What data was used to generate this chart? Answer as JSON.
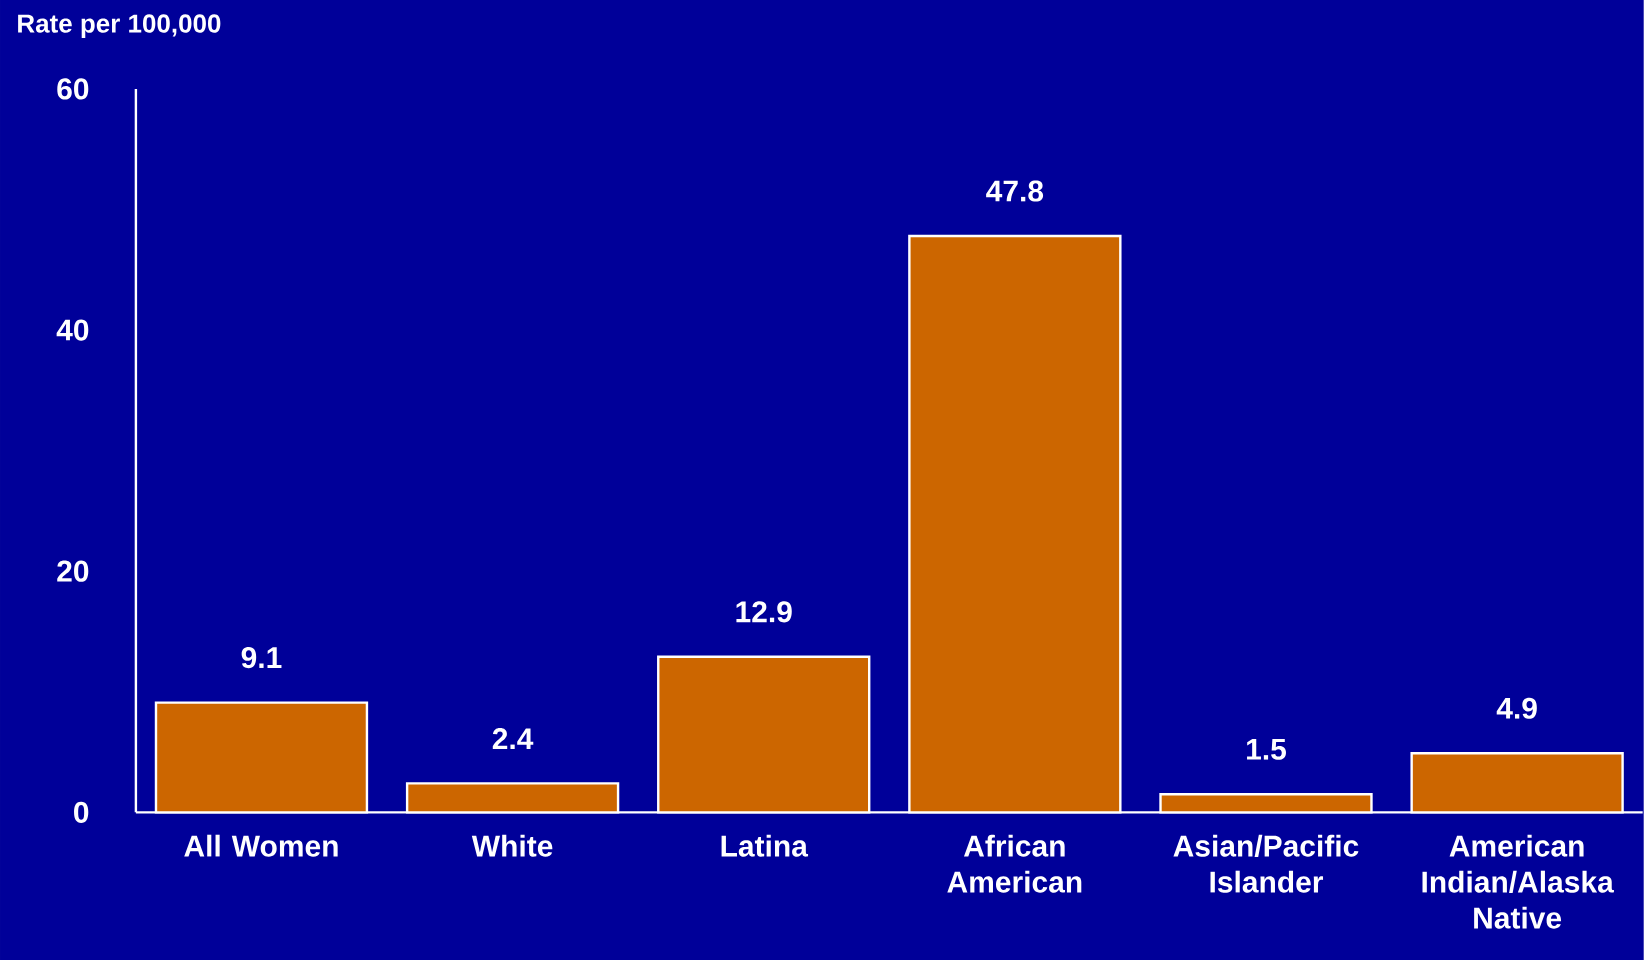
{
  "chart_data": {
    "type": "bar",
    "ylabel": "Rate per 100,000",
    "categories": [
      "All Women",
      "White",
      "Latina",
      "African American",
      "Asian/Pacific Islander",
      "American Indian/Alaska Native"
    ],
    "values": [
      9.1,
      2.4,
      12.9,
      47.8,
      1.5,
      4.9
    ],
    "color": "#cc6600",
    "data_labels": true,
    "ylim": [
      0,
      60
    ],
    "yticks": [
      0,
      20,
      40,
      60
    ]
  }
}
